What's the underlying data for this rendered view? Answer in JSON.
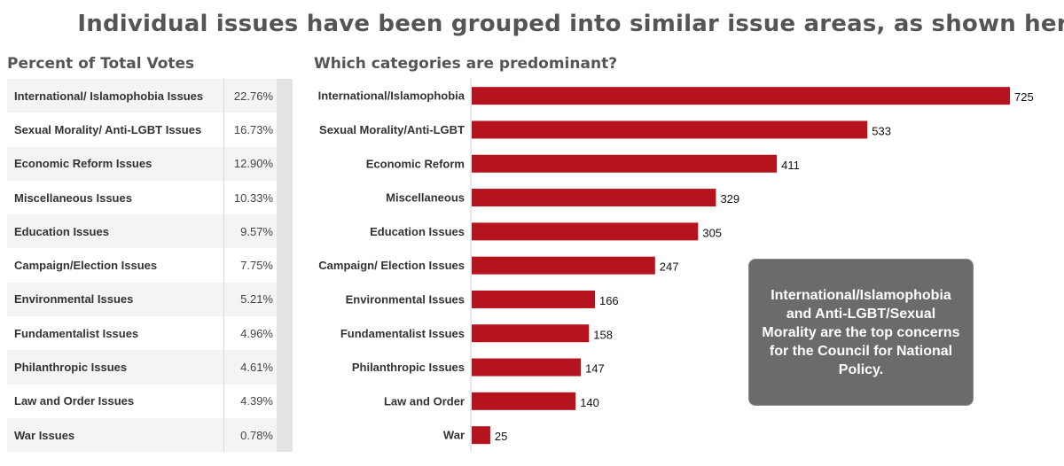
{
  "title": "Individual issues have been grouped into similar issue areas, as shown here",
  "left_panel": {
    "title": "Percent of Total Votes",
    "rows": [
      {
        "label": "International/ Islamophobia Issues",
        "percent": "22.76%"
      },
      {
        "label": "Sexual Morality/ Anti-LGBT Issues",
        "percent": "16.73%"
      },
      {
        "label": "Economic Reform Issues",
        "percent": "12.90%"
      },
      {
        "label": "Miscellaneous Issues",
        "percent": "10.33%"
      },
      {
        "label": "Education Issues",
        "percent": "9.57%"
      },
      {
        "label": "Campaign/Election Issues",
        "percent": "7.75%"
      },
      {
        "label": "Environmental Issues",
        "percent": "5.21%"
      },
      {
        "label": "Fundamentalist Issues",
        "percent": "4.96%"
      },
      {
        "label": "Philanthropic Issues",
        "percent": "4.61%"
      },
      {
        "label": "Law and Order Issues",
        "percent": "4.39%"
      },
      {
        "label": "War Issues",
        "percent": "0.78%"
      }
    ]
  },
  "right_panel": {
    "title": "Which categories are predominant?"
  },
  "chart_data": {
    "type": "bar",
    "orientation": "horizontal",
    "categories": [
      "International/Islamophobia",
      "Sexual Morality/Anti-LGBT",
      "Economic Reform",
      "Miscellaneous",
      "Education Issues",
      "Campaign/ Election Issues",
      "Environmental Issues",
      "Fundamentalist Issues",
      "Philanthropic Issues",
      "Law and Order",
      "War"
    ],
    "values": [
      725,
      533,
      411,
      329,
      305,
      247,
      166,
      158,
      147,
      140,
      25
    ],
    "xlim": [
      0,
      725
    ],
    "bar_color": "#b5141f",
    "data_labels": true,
    "grid": false
  },
  "callout": {
    "text": "International/Islamophobia and Anti-LGBT/Sexual Morality are the top concerns for the Council for National Policy."
  },
  "colors": {
    "title": "#555555",
    "bar": "#b5141f",
    "callout_bg": "#6b6b6b",
    "callout_text": "#ffffff"
  }
}
